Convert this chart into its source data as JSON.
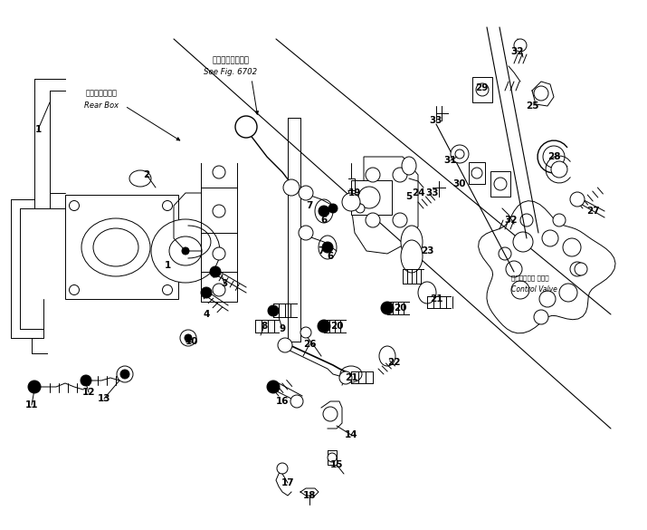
{
  "bg_color": "#ffffff",
  "line_color": "#000000",
  "lw": 0.7,
  "fig_width": 7.15,
  "fig_height": 5.85,
  "dpi": 100,
  "part_labels": [
    [
      "1",
      0.42,
      4.42
    ],
    [
      "2",
      1.62,
      3.92
    ],
    [
      "1",
      1.85,
      2.92
    ],
    [
      "3",
      2.48,
      2.72
    ],
    [
      "4",
      2.28,
      2.38
    ],
    [
      "5",
      4.52,
      3.68
    ],
    [
      "6",
      3.58,
      3.42
    ],
    [
      "6",
      3.65,
      3.02
    ],
    [
      "7",
      3.42,
      3.58
    ],
    [
      "7",
      3.55,
      3.08
    ],
    [
      "8",
      2.92,
      2.25
    ],
    [
      "9",
      3.12,
      2.22
    ],
    [
      "10",
      2.12,
      2.08
    ],
    [
      "11",
      0.35,
      1.38
    ],
    [
      "12",
      0.98,
      1.52
    ],
    [
      "13",
      1.15,
      1.45
    ],
    [
      "14",
      3.88,
      1.05
    ],
    [
      "15",
      3.72,
      0.72
    ],
    [
      "16",
      3.12,
      1.42
    ],
    [
      "17",
      3.18,
      0.52
    ],
    [
      "18",
      3.42,
      0.38
    ],
    [
      "19",
      3.92,
      3.72
    ],
    [
      "20",
      4.42,
      2.45
    ],
    [
      "20",
      3.72,
      2.25
    ],
    [
      "21",
      4.82,
      2.55
    ],
    [
      "21",
      3.88,
      1.68
    ],
    [
      "22",
      4.35,
      1.85
    ],
    [
      "23",
      4.72,
      3.08
    ],
    [
      "24",
      4.62,
      3.72
    ],
    [
      "25",
      5.88,
      4.68
    ],
    [
      "26",
      3.42,
      2.05
    ],
    [
      "27",
      6.55,
      3.52
    ],
    [
      "28",
      6.12,
      4.12
    ],
    [
      "29",
      5.32,
      4.88
    ],
    [
      "30",
      5.08,
      3.82
    ],
    [
      "31",
      4.98,
      4.08
    ],
    [
      "32",
      5.72,
      5.28
    ],
    [
      "32",
      5.65,
      3.42
    ],
    [
      "33",
      4.82,
      4.52
    ],
    [
      "33",
      4.78,
      3.72
    ]
  ],
  "annotations": [
    [
      "リヤーボックス",
      1.12,
      4.82,
      6.2,
      false
    ],
    [
      "Rear Box",
      1.12,
      4.68,
      6.2,
      true
    ],
    [
      "第６７０２図参照",
      2.52,
      5.12,
      6.5,
      false
    ],
    [
      "See Fig. 6702",
      2.52,
      4.98,
      6.5,
      true
    ],
    [
      "コントロール バルブ",
      5.62,
      2.75,
      5.5,
      false
    ],
    [
      "Control Valve",
      5.62,
      2.62,
      5.5,
      true
    ]
  ]
}
